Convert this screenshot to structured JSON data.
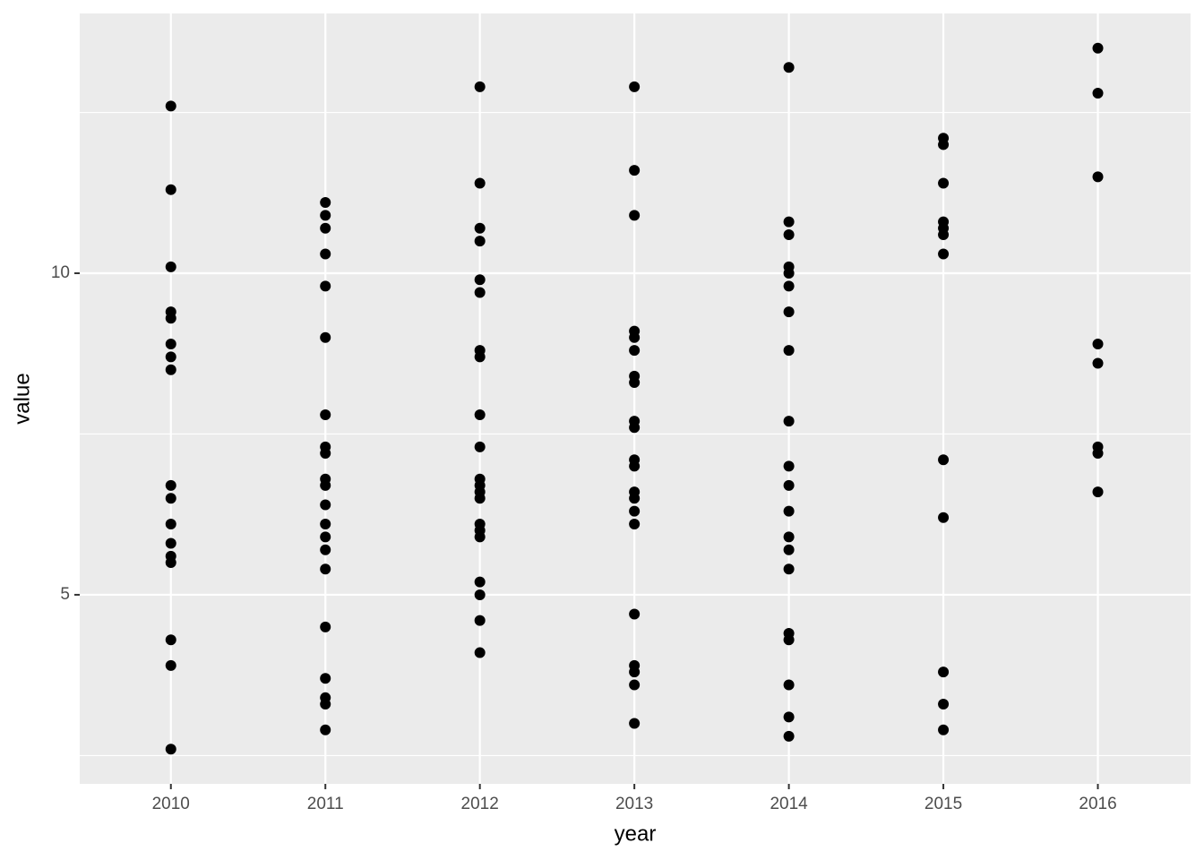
{
  "chart_data": {
    "type": "scatter",
    "xlabel": "year",
    "ylabel": "value",
    "x": [
      2010,
      2010,
      2010,
      2010,
      2010,
      2010,
      2010,
      2010,
      2010,
      2010,
      2010,
      2010,
      2010,
      2010,
      2010,
      2010,
      2010,
      2011,
      2011,
      2011,
      2011,
      2011,
      2011,
      2011,
      2011,
      2011,
      2011,
      2011,
      2011,
      2011,
      2011,
      2011,
      2011,
      2011,
      2011,
      2011,
      2011,
      2011,
      2012,
      2012,
      2012,
      2012,
      2012,
      2012,
      2012,
      2012,
      2012,
      2012,
      2012,
      2012,
      2012,
      2012,
      2012,
      2012,
      2012,
      2012,
      2012,
      2012,
      2012,
      2013,
      2013,
      2013,
      2013,
      2013,
      2013,
      2013,
      2013,
      2013,
      2013,
      2013,
      2013,
      2013,
      2013,
      2013,
      2013,
      2013,
      2013,
      2013,
      2013,
      2013,
      2014,
      2014,
      2014,
      2014,
      2014,
      2014,
      2014,
      2014,
      2014,
      2014,
      2014,
      2014,
      2014,
      2014,
      2014,
      2014,
      2014,
      2014,
      2014,
      2014,
      2015,
      2015,
      2015,
      2015,
      2015,
      2015,
      2015,
      2015,
      2015,
      2015,
      2015,
      2015,
      2016,
      2016,
      2016,
      2016,
      2016,
      2016,
      2016,
      2016
    ],
    "values": [
      12.6,
      11.3,
      10.1,
      9.4,
      9.3,
      8.9,
      8.7,
      8.5,
      6.7,
      6.5,
      6.1,
      5.8,
      5.6,
      5.5,
      4.3,
      3.9,
      2.6,
      11.1,
      10.9,
      10.7,
      10.3,
      9.8,
      9.0,
      7.8,
      7.3,
      7.2,
      6.8,
      6.7,
      6.4,
      6.1,
      5.9,
      5.7,
      5.4,
      4.5,
      3.7,
      3.4,
      3.3,
      2.9,
      12.9,
      11.4,
      10.7,
      10.5,
      9.9,
      9.7,
      8.8,
      8.7,
      7.8,
      7.3,
      6.8,
      6.7,
      6.6,
      6.5,
      6.1,
      6.0,
      5.9,
      5.2,
      5.0,
      4.6,
      4.1,
      12.9,
      11.6,
      10.9,
      9.1,
      9.0,
      8.8,
      8.4,
      8.3,
      7.7,
      7.6,
      7.1,
      7.0,
      6.6,
      6.5,
      6.3,
      6.1,
      4.7,
      3.9,
      3.8,
      3.6,
      3.0,
      13.2,
      10.8,
      10.6,
      10.1,
      10.0,
      9.8,
      9.4,
      8.8,
      7.7,
      7.0,
      6.7,
      6.3,
      5.9,
      5.7,
      5.4,
      4.4,
      4.3,
      3.6,
      3.1,
      2.8,
      12.1,
      12.0,
      11.4,
      10.8,
      10.7,
      10.6,
      10.3,
      7.1,
      6.2,
      3.8,
      3.3,
      2.9,
      13.5,
      12.8,
      11.5,
      8.9,
      8.6,
      7.3,
      7.2,
      6.6
    ],
    "color": "#000000",
    "xlim": [
      2009.41,
      2016.6
    ],
    "xticks": [
      2010,
      2011,
      2012,
      2013,
      2014,
      2015,
      2016
    ],
    "ylim": [
      2.06,
      14.04
    ],
    "yticks": [
      5,
      10
    ],
    "minor_yticks": [
      2.5,
      7.5,
      12.5
    ],
    "grid": true
  }
}
